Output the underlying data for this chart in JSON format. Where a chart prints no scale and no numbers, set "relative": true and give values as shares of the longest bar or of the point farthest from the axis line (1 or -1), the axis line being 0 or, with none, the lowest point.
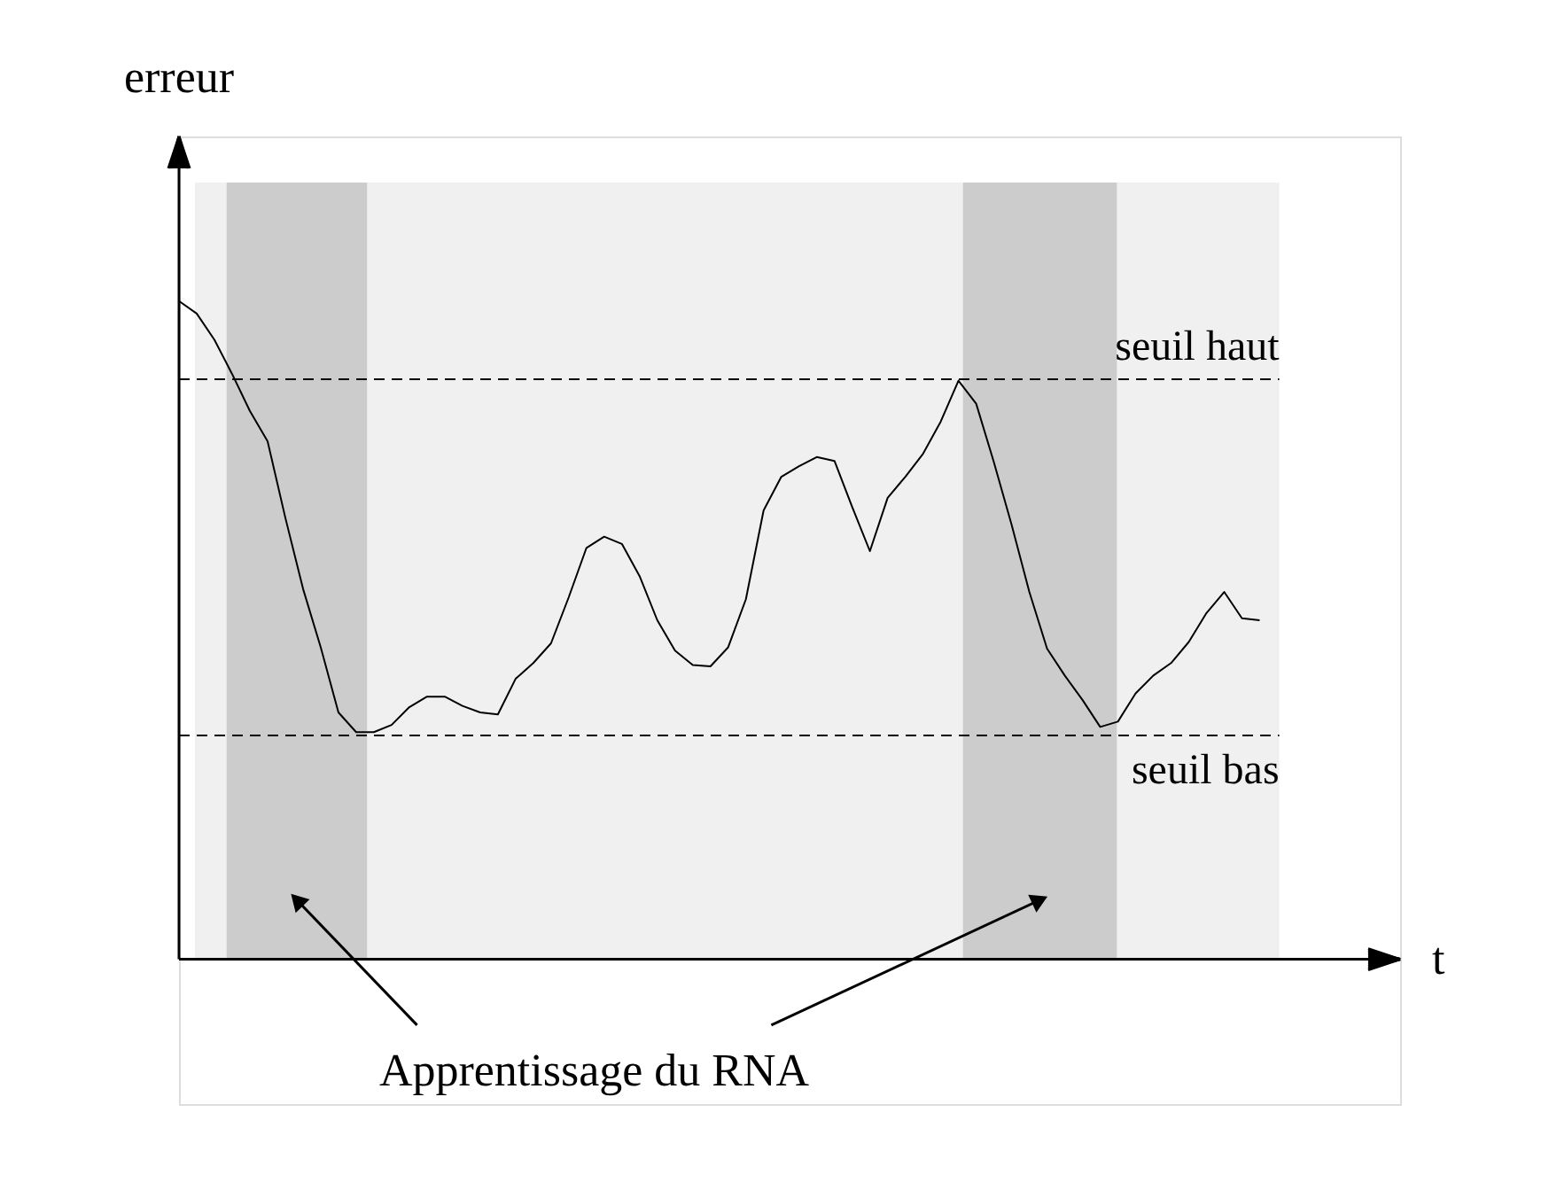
{
  "chart_data": {
    "type": "line",
    "relative": true,
    "xlabel": "t",
    "ylabel": "erreur",
    "categories": [
      null,
      null,
      null,
      null,
      null,
      null,
      null,
      null,
      null,
      null,
      null,
      null,
      null,
      null,
      null,
      null,
      null,
      null,
      null,
      null,
      null,
      null,
      null,
      null,
      null,
      null,
      null,
      null,
      null,
      null,
      null,
      null,
      null,
      null,
      null,
      null,
      null,
      null,
      null,
      null,
      null,
      null,
      null,
      null,
      null,
      null,
      null,
      null,
      null,
      null,
      null,
      null,
      null,
      null,
      null,
      null,
      null,
      null,
      null,
      null,
      null,
      null
    ],
    "series": [
      {
        "color": "#000000",
        "values": [
          1.0,
          0.981,
          0.941,
          0.889,
          0.833,
          0.787,
          0.671,
          0.563,
          0.474,
          0.375,
          0.345,
          0.345,
          0.356,
          0.383,
          0.399,
          0.399,
          0.385,
          0.375,
          0.372,
          0.426,
          0.45,
          0.48,
          0.55,
          0.625,
          0.642,
          0.631,
          0.582,
          0.515,
          0.469,
          0.447,
          0.445,
          0.474,
          0.547,
          0.682,
          0.733,
          0.749,
          0.763,
          0.757,
          0.687,
          0.62,
          0.701,
          0.733,
          0.768,
          0.817,
          0.879,
          0.844,
          0.755,
          0.66,
          0.558,
          0.472,
          0.431,
          0.394,
          0.353,
          0.361,
          0.404,
          0.431,
          0.45,
          0.482,
          0.526,
          0.558,
          0.518,
          0.515
        ]
      }
    ],
    "ref_lines": [
      {
        "axis": "y",
        "value": 0.881,
        "label": "seuil haut",
        "line_style": "dashed",
        "color": "#000000"
      },
      {
        "axis": "y",
        "value": 0.34,
        "label": "seuil bas",
        "line_style": "dashed",
        "color": "#000000"
      }
    ],
    "annotations": [
      "Apprentissage du RNA"
    ],
    "legend": false,
    "marker": "none",
    "line_style": "solid"
  }
}
